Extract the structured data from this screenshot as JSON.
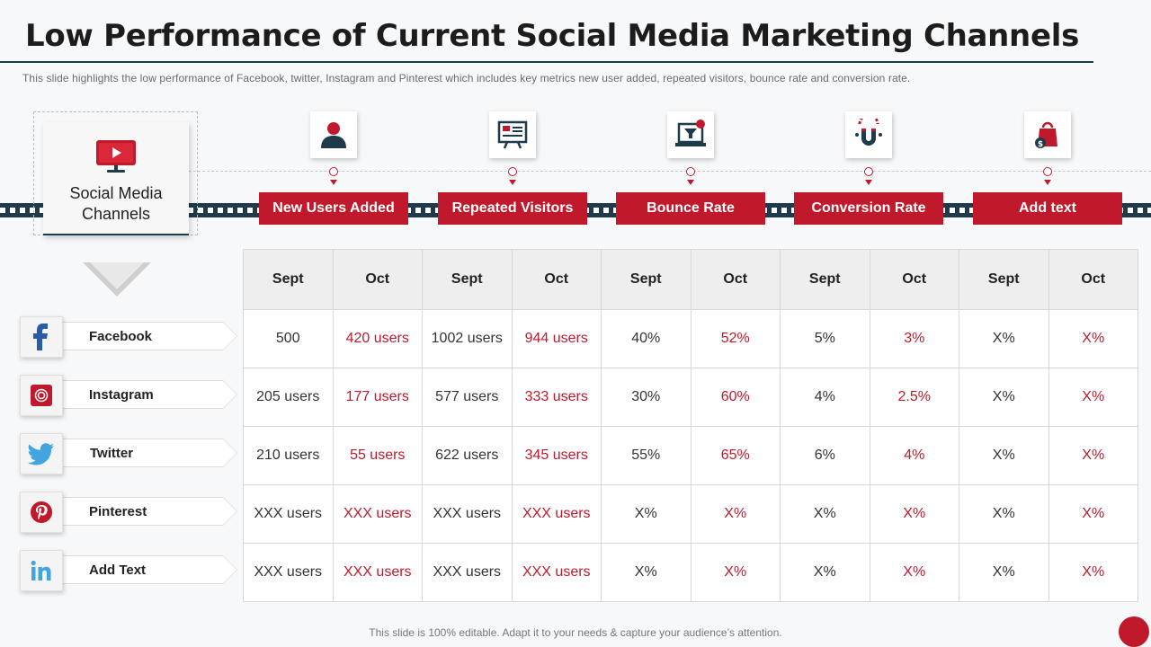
{
  "title": "Low Performance of Current Social Media Marketing Channels",
  "subtitle": "This slide highlights the low performance  of Facebook, twitter, Instagram and Pinterest which includes key metrics new user added, repeated visitors, bounce rate and conversion  rate.",
  "channel_card": {
    "line1": "Social Media",
    "line2": "Channels",
    "icon": "tv-play-icon"
  },
  "colors": {
    "accent": "#c0192c",
    "navy": "#1f3a4a",
    "header_bg": "#eeeeee"
  },
  "metrics": [
    {
      "label": "New Users Added",
      "icon": "user-icon"
    },
    {
      "label": "Repeated Visitors",
      "icon": "presentation-board-icon"
    },
    {
      "label": "Bounce Rate",
      "icon": "laptop-funnel-icon"
    },
    {
      "label": "Conversion Rate",
      "icon": "magnet-conversion-icon"
    },
    {
      "label": "Add text",
      "icon": "shopping-bag-dollar-icon"
    }
  ],
  "table": {
    "headers": [
      "Sept",
      "Oct",
      "Sept",
      "Oct",
      "Sept",
      "Oct",
      "Sept",
      "Oct",
      "Sept",
      "Oct"
    ],
    "rows": [
      {
        "channel": "Facebook",
        "icon": "facebook-icon",
        "cells": [
          "500",
          "420 users",
          "1002 users",
          "944 users",
          "40%",
          "52%",
          "5%",
          "3%",
          "X%",
          "X%"
        ]
      },
      {
        "channel": "Instagram",
        "icon": "instagram-icon",
        "cells": [
          "205 users",
          "177 users",
          "577 users",
          "333 users",
          "30%",
          "60%",
          "4%",
          "2.5%",
          "X%",
          "X%"
        ]
      },
      {
        "channel": "Twitter",
        "icon": "twitter-icon",
        "cells": [
          "210 users",
          "55 users",
          "622 users",
          "345 users",
          "55%",
          "65%",
          "6%",
          "4%",
          "X%",
          "X%"
        ]
      },
      {
        "channel": "Pinterest",
        "icon": "pinterest-icon",
        "cells": [
          "XXX users",
          "XXX users",
          "XXX users",
          "XXX users",
          "X%",
          "X%",
          "X%",
          "X%",
          "X%",
          "X%"
        ]
      },
      {
        "channel": "Add Text",
        "icon": "linkedin-icon",
        "cells": [
          "XXX users",
          "XXX users",
          "XXX users",
          "XXX users",
          "X%",
          "X%",
          "X%",
          "X%",
          "X%",
          "X%"
        ]
      }
    ]
  },
  "footer": "This slide is 100% editable. Adapt it to your needs & capture your audience’s attention."
}
